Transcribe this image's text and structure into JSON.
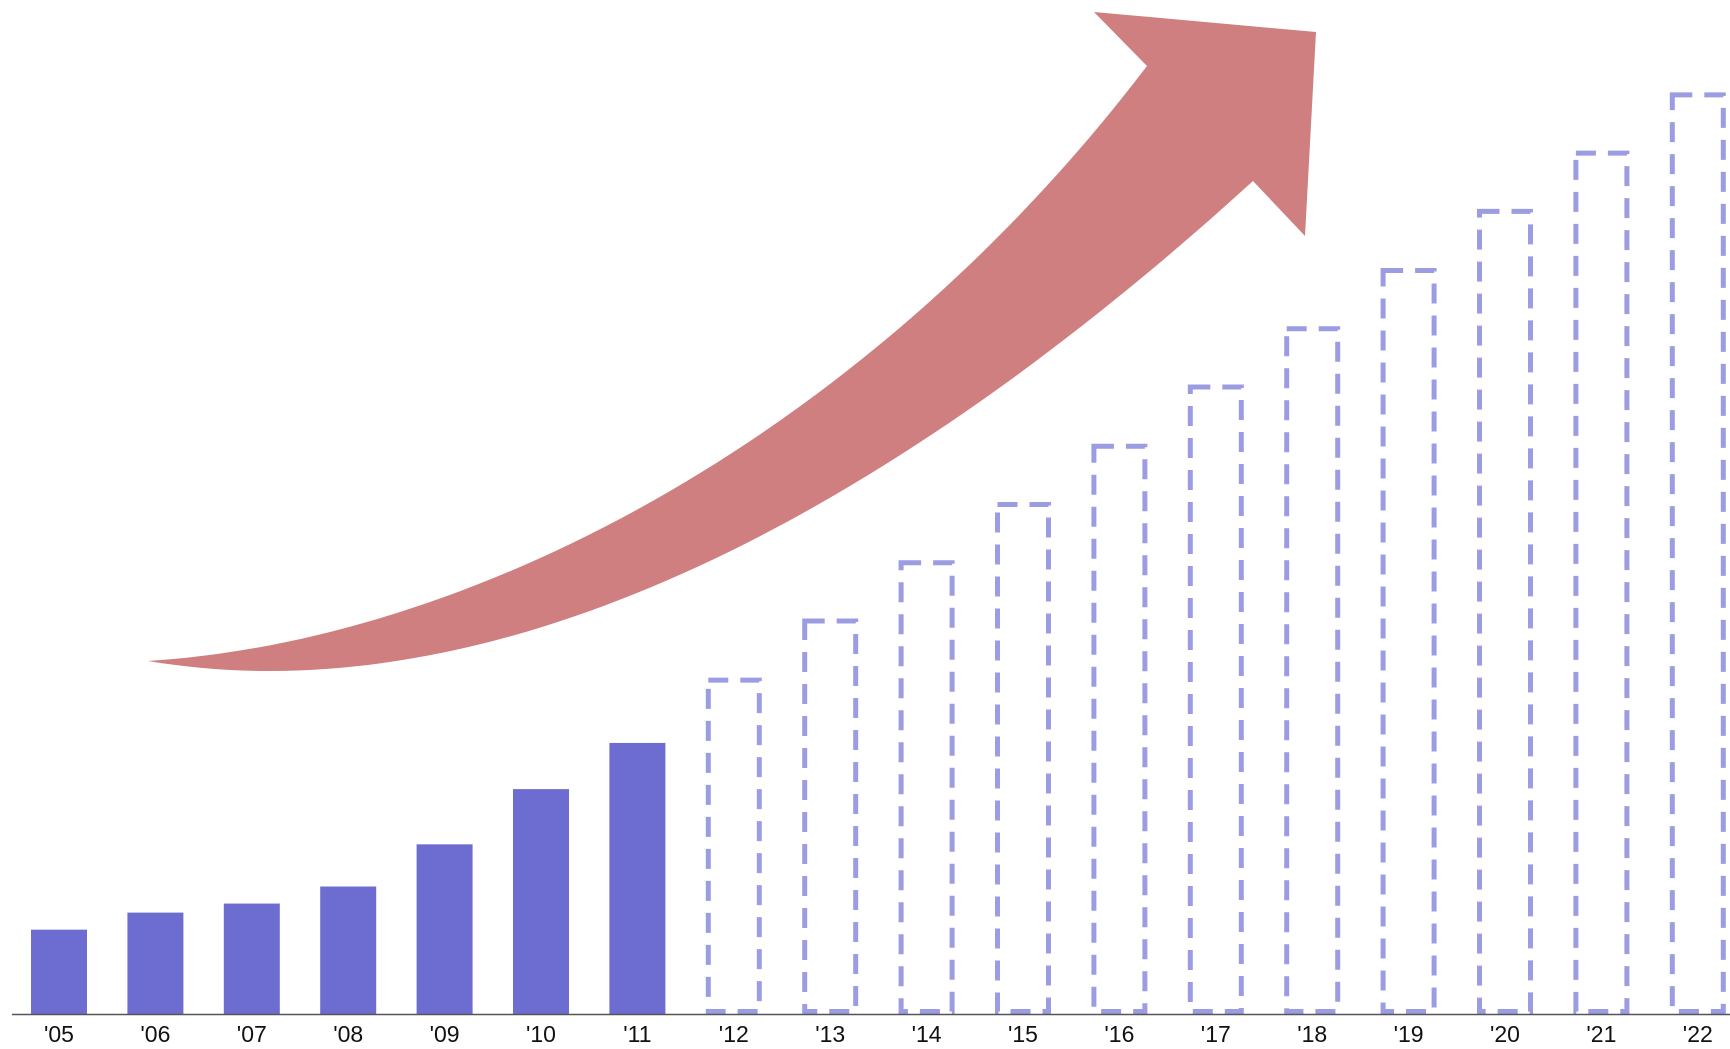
{
  "chart_data": {
    "type": "bar",
    "title": "",
    "xlabel": "",
    "ylabel": "",
    "categories": [
      "'05",
      "'06",
      "'07",
      "'08",
      "'09",
      "'10",
      "'11",
      "'12",
      "'13",
      "'14",
      "'15",
      "'16",
      "'17",
      "'18",
      "'19",
      "'20",
      "'21",
      "'22"
    ],
    "series": [
      {
        "style": "solid",
        "values": [
          84,
          101,
          110,
          127,
          169,
          224,
          270,
          null,
          null,
          null,
          null,
          null,
          null,
          null,
          null,
          null,
          null,
          null
        ]
      },
      {
        "style": "dashed",
        "values": [
          null,
          null,
          null,
          null,
          null,
          null,
          null,
          335,
          394,
          452,
          510,
          568,
          627,
          685,
          743,
          802,
          860,
          918
        ]
      }
    ],
    "ylim": [
      0,
      1010
    ],
    "y_axis_visible": false,
    "grid": false,
    "legend": "none",
    "annotation": "upward growth arrow"
  },
  "colors": {
    "actual_bar": "#6d6dd1",
    "projected_bar_stroke": "#9c9ce2",
    "arrow": "#cf7f7f",
    "baseline": "#555555"
  }
}
